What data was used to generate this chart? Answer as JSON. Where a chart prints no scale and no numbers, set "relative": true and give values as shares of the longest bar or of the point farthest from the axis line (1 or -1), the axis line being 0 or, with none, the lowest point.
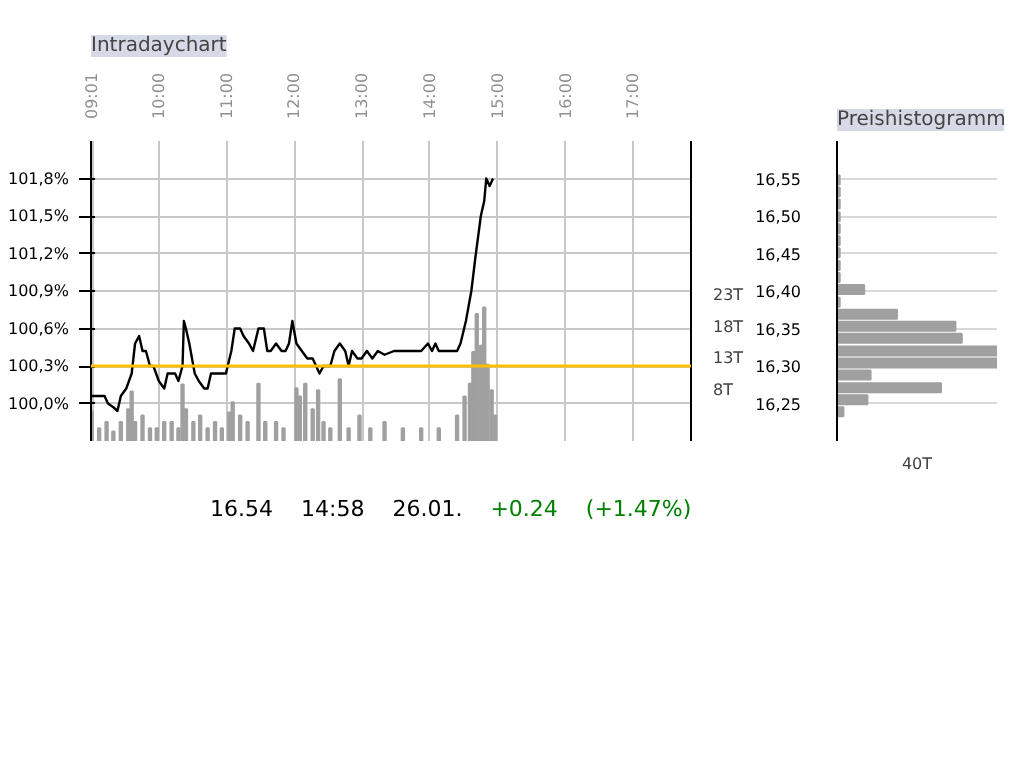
{
  "chart_data": [
    {
      "type": "line",
      "title": "Intradaychart",
      "series": [
        {
          "color": "#000000",
          "x": [
            9.01,
            9.2,
            9.25,
            9.33,
            9.39,
            9.44,
            9.52,
            9.6,
            9.65,
            9.71,
            9.76,
            9.81,
            9.87,
            9.92,
            10.0,
            10.08,
            10.13,
            10.19,
            10.24,
            10.29,
            10.35,
            10.37,
            10.4,
            10.45,
            10.53,
            10.59,
            10.67,
            10.72,
            10.77,
            10.85,
            10.93,
            10.99,
            11.07,
            11.12,
            11.2,
            11.25,
            11.33,
            11.39,
            11.47,
            11.55,
            11.6,
            11.65,
            11.73,
            11.81,
            11.87,
            11.92,
            11.97,
            12.03,
            12.11,
            12.19,
            12.27,
            12.32,
            12.37,
            12.43,
            12.48,
            12.53,
            12.59,
            12.67,
            12.75,
            12.8,
            12.85,
            12.93,
            12.99,
            13.07,
            13.15,
            13.23,
            13.33,
            13.47,
            13.6,
            13.73,
            13.87,
            13.97,
            14.03,
            14.08,
            14.13,
            14.19,
            14.29,
            14.4,
            14.45,
            14.53,
            14.61,
            14.67,
            14.75,
            14.8,
            14.83,
            14.88,
            14.93
          ],
          "values": [
            100.06,
            100.06,
            100.0,
            99.97,
            99.94,
            100.06,
            100.12,
            100.24,
            100.48,
            100.54,
            100.42,
            100.42,
            100.3,
            100.3,
            100.18,
            100.12,
            100.24,
            100.24,
            100.24,
            100.18,
            100.3,
            100.66,
            100.6,
            100.48,
            100.24,
            100.18,
            100.12,
            100.12,
            100.24,
            100.24,
            100.24,
            100.24,
            100.42,
            100.6,
            100.6,
            100.54,
            100.48,
            100.42,
            100.6,
            100.6,
            100.42,
            100.42,
            100.48,
            100.42,
            100.42,
            100.48,
            100.66,
            100.48,
            100.42,
            100.36,
            100.36,
            100.3,
            100.24,
            100.3,
            100.3,
            100.3,
            100.42,
            100.48,
            100.42,
            100.3,
            100.42,
            100.36,
            100.36,
            100.42,
            100.36,
            100.42,
            100.39,
            100.42,
            100.42,
            100.42,
            100.42,
            100.48,
            100.42,
            100.48,
            100.42,
            100.42,
            100.42,
            100.42,
            100.48,
            100.66,
            100.9,
            101.17,
            101.5,
            101.62,
            101.8,
            101.74,
            101.8
          ]
        },
        {
          "type": "bar",
          "axis": "y2",
          "color": "#a0a0a0",
          "x": [
            9.01,
            9.12,
            9.23,
            9.33,
            9.44,
            9.55,
            9.6,
            9.65,
            9.76,
            9.87,
            9.97,
            10.08,
            10.19,
            10.29,
            10.35,
            10.4,
            10.51,
            10.61,
            10.72,
            10.83,
            10.93,
            11.04,
            11.09,
            11.2,
            11.31,
            11.47,
            11.57,
            11.73,
            11.84,
            12.03,
            12.08,
            12.16,
            12.27,
            12.35,
            12.43,
            12.53,
            12.67,
            12.8,
            12.96,
            13.12,
            13.33,
            13.6,
            13.87,
            14.13,
            14.4,
            14.51,
            14.59,
            14.64,
            14.69,
            14.75,
            14.8,
            14.85,
            14.91,
            14.96
          ],
          "values": [
            4.7,
            2,
            3,
            1.5,
            3,
            5,
            7.8,
            3,
            4,
            2,
            2,
            3,
            3,
            2,
            8.9,
            5,
            3,
            4,
            2,
            3,
            2,
            4.5,
            6.1,
            4,
            3,
            9,
            3,
            3,
            2,
            8.3,
            7,
            9,
            5,
            8,
            3,
            2,
            9.7,
            2,
            4,
            2,
            3,
            2,
            2,
            2,
            4,
            7,
            9,
            14,
            20,
            15,
            21,
            12,
            8,
            4
          ]
        }
      ],
      "xlim": [
        9,
        17.85
      ],
      "xticks": [
        {
          "value": 9.0167,
          "label": "09:01"
        },
        {
          "value": 10,
          "label": "10:00"
        },
        {
          "value": 11,
          "label": "11:00"
        },
        {
          "value": 12,
          "label": "12:00"
        },
        {
          "value": 13,
          "label": "13:00"
        },
        {
          "value": 14,
          "label": "14:00"
        },
        {
          "value": 15,
          "label": "15:00"
        },
        {
          "value": 16,
          "label": "16:00"
        },
        {
          "value": 17,
          "label": "17:00"
        }
      ],
      "ylim": [
        99.7,
        102.1
      ],
      "yticks": [
        {
          "value": 100.0,
          "label": "100,0%"
        },
        {
          "value": 100.3,
          "label": "100,3%"
        },
        {
          "value": 100.6,
          "label": "100,6%"
        },
        {
          "value": 100.9,
          "label": "100,9%"
        },
        {
          "value": 101.2,
          "label": "101,2%"
        },
        {
          "value": 101.5,
          "label": "101,5%"
        },
        {
          "value": 101.8,
          "label": "101,8%"
        }
      ],
      "y2lim": [
        0,
        47.2
      ],
      "y2ticks": [
        {
          "value": 8,
          "label": "8T"
        },
        {
          "value": 13,
          "label": "13T"
        },
        {
          "value": 18,
          "label": "18T"
        },
        {
          "value": 23,
          "label": "23T"
        }
      ],
      "ref_lines": [
        {
          "axis": "y",
          "value": 100.3,
          "color": "#ffc000"
        }
      ],
      "grid": true,
      "annotations": [
        "16.54",
        "14:58",
        "26.01.",
        "+0.24",
        "(+1.47%)"
      ]
    },
    {
      "type": "bar",
      "title": "Preishistogramm",
      "orientation": "horizontal",
      "x": [
        16.548,
        16.532,
        16.516,
        16.499,
        16.483,
        16.467,
        16.451,
        16.434,
        16.418,
        16.402,
        16.385,
        16.369,
        16.353,
        16.337,
        16.32,
        16.304,
        16.288,
        16.271,
        16.255,
        16.239
      ],
      "ylim": [
        16.2,
        16.6
      ],
      "yticks": [
        {
          "value": 16.25,
          "label": "16,25"
        },
        {
          "value": 16.3,
          "label": "16,30"
        },
        {
          "value": 16.35,
          "label": "16,35"
        },
        {
          "value": 16.4,
          "label": "16,40"
        },
        {
          "value": 16.45,
          "label": "16,45"
        },
        {
          "value": 16.5,
          "label": "16,50"
        },
        {
          "value": 16.55,
          "label": "16,55"
        }
      ],
      "grid": "y",
      "values": [
        0.017,
        0.017,
        0.017,
        0.017,
        0.017,
        0.017,
        0.017,
        0.017,
        0.017,
        0.17,
        0.017,
        0.375,
        0.74,
        0.78,
        1,
        1,
        0.21,
        0.65,
        0.19,
        0.04
      ],
      "color": "#a0a0a0",
      "relative": true,
      "annotations": [
        "40T"
      ]
    }
  ]
}
